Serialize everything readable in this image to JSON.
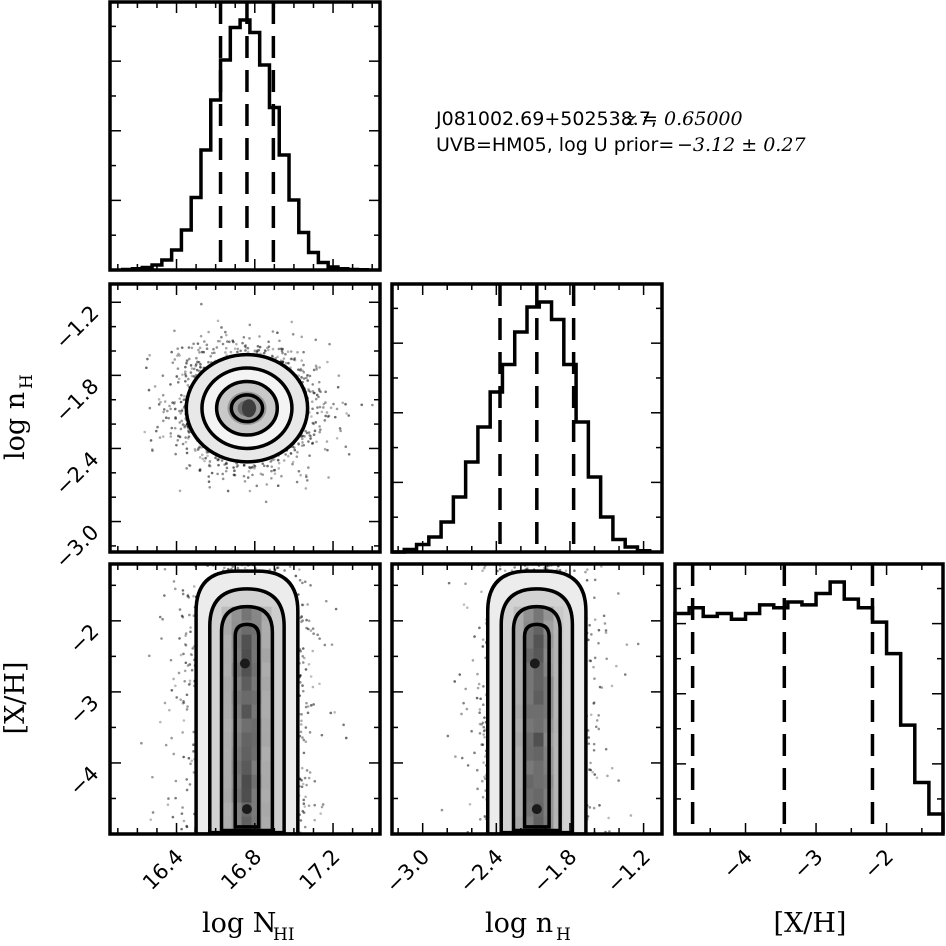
{
  "title": {
    "line1_object": "J081002.69+502538.7, ",
    "line1_redshift": "z = 0.65000",
    "line2_text": "UVB=HM05, log U prior=",
    "line2_value": "−3.12 ± 0.27"
  },
  "chart_data": {
    "type": "corner",
    "parameters": [
      {
        "name": "log N_HI",
        "label": "log N",
        "label_sub": "HI",
        "range": [
          16.06,
          17.44
        ],
        "ticks": [
          16.4,
          16.8,
          17.2
        ],
        "tick_labels": [
          "16.4",
          "16.8",
          "17.2"
        ]
      },
      {
        "name": "log n_H",
        "label": "log n",
        "label_sub": "H",
        "range": [
          -3.25,
          -1.05
        ],
        "ticks": [
          -3.0,
          -2.4,
          -1.8,
          -1.2
        ],
        "tick_labels": [
          "−3.0",
          "−2.4",
          "−1.8",
          "−1.2"
        ]
      },
      {
        "name": "[X/H]",
        "label": "[X/H]",
        "label_sub": "",
        "range": [
          -5.0,
          -1.2
        ],
        "ticks": [
          -4,
          -3,
          -2
        ],
        "tick_labels": [
          "−4",
          "−3",
          "−2"
        ]
      }
    ],
    "histograms": [
      {
        "parameter": "log N_HI",
        "bin_edges": [
          16.125,
          16.175,
          16.225,
          16.275,
          16.325,
          16.375,
          16.425,
          16.475,
          16.525,
          16.575,
          16.625,
          16.675,
          16.725,
          16.775,
          16.825,
          16.875,
          16.925,
          16.975,
          17.025,
          17.075,
          17.125,
          17.175,
          17.225,
          17.275,
          17.325,
          17.375
        ],
        "counts": [
          0.002,
          0.005,
          0.01,
          0.02,
          0.04,
          0.08,
          0.16,
          0.29,
          0.48,
          0.68,
          0.84,
          0.97,
          1.0,
          0.95,
          0.82,
          0.65,
          0.46,
          0.28,
          0.15,
          0.07,
          0.03,
          0.012,
          0.005,
          0.002,
          0.001
        ],
        "quantiles": [
          16.625,
          16.76,
          16.895
        ]
      },
      {
        "parameter": "log n_H",
        "bin_edges": [
          -3.25,
          -3.15,
          -3.05,
          -2.95,
          -2.85,
          -2.75,
          -2.65,
          -2.55,
          -2.45,
          -2.35,
          -2.25,
          -2.15,
          -2.05,
          -1.95,
          -1.85,
          -1.75,
          -1.65,
          -1.55,
          -1.45,
          -1.35,
          -1.25,
          -1.15
        ],
        "counts": [
          0.0,
          0.01,
          0.03,
          0.06,
          0.12,
          0.22,
          0.36,
          0.5,
          0.64,
          0.75,
          0.88,
          0.98,
          1.0,
          0.93,
          0.75,
          0.52,
          0.3,
          0.14,
          0.05,
          0.02,
          0.005
        ],
        "quantiles": [
          -2.37,
          -2.07,
          -1.77
        ]
      },
      {
        "parameter": "[X/H]",
        "bin_edges": [
          -5.0,
          -4.8,
          -4.6,
          -4.4,
          -4.2,
          -4.0,
          -3.8,
          -3.6,
          -3.4,
          -3.2,
          -3.0,
          -2.8,
          -2.6,
          -2.4,
          -2.2,
          -2.0,
          -1.8,
          -1.6,
          -1.4,
          -1.2
        ],
        "counts": [
          0.77,
          0.79,
          0.76,
          0.77,
          0.75,
          0.77,
          0.8,
          0.79,
          0.81,
          0.8,
          0.84,
          0.88,
          0.82,
          0.79,
          0.74,
          0.63,
          0.38,
          0.18,
          0.07
        ],
        "quantiles": [
          -4.75,
          -3.45,
          -2.2
        ]
      }
    ],
    "joint_2d": [
      {
        "x": "log N_HI",
        "y": "log n_H",
        "center": [
          16.76,
          -2.07
        ],
        "contour_sigmas": [
          [
            0.08,
            0.11
          ],
          [
            0.155,
            0.22
          ],
          [
            0.23,
            0.33
          ],
          [
            0.31,
            0.44
          ]
        ]
      },
      {
        "x": "log N_HI",
        "y": "[X/H]",
        "center": [
          16.76,
          -3.3
        ],
        "x_contour_halfwidths": [
          0.06,
          0.13,
          0.19,
          0.26
        ],
        "y_contour_ranges": [
          [
            -4.9,
            -2.05
          ],
          [
            -4.95,
            -1.8
          ],
          [
            -4.98,
            -1.55
          ],
          [
            -5.0,
            -1.3
          ]
        ]
      },
      {
        "x": "log n_H",
        "y": "[X/H]",
        "center": [
          -2.07,
          -3.3
        ],
        "x_contour_halfwidths": [
          0.1,
          0.19,
          0.29,
          0.4
        ],
        "y_contour_ranges": [
          [
            -4.9,
            -2.05
          ],
          [
            -4.95,
            -1.8
          ],
          [
            -4.98,
            -1.55
          ],
          [
            -5.0,
            -1.3
          ]
        ]
      }
    ]
  }
}
